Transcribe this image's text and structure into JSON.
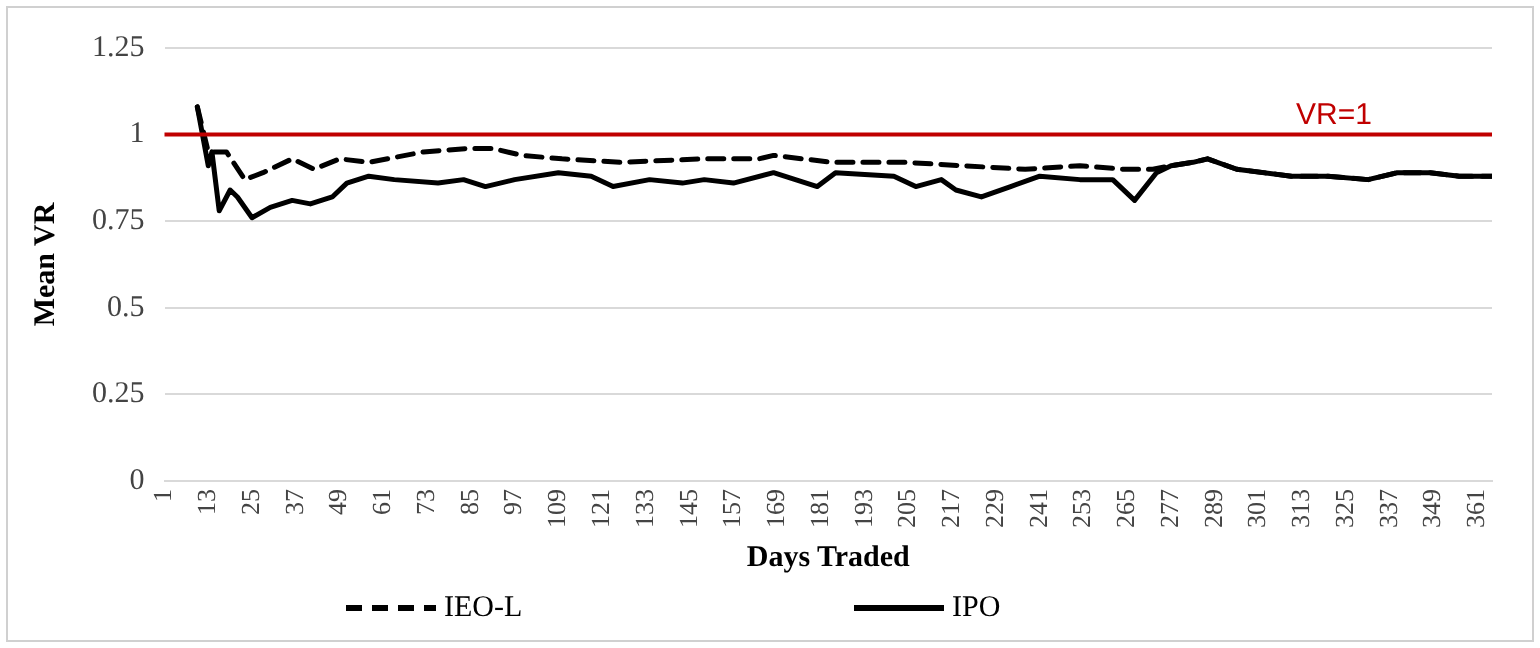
{
  "chart_data": {
    "type": "line",
    "xlabel": "Days Traded",
    "ylabel": "Mean VR",
    "xlim": [
      1,
      365
    ],
    "xticks": [
      1,
      13,
      25,
      37,
      49,
      61,
      73,
      85,
      97,
      109,
      121,
      133,
      145,
      157,
      169,
      181,
      193,
      205,
      217,
      229,
      241,
      253,
      265,
      277,
      289,
      301,
      313,
      325,
      337,
      349,
      361
    ],
    "ylim": [
      0,
      1.25
    ],
    "yticks": [
      0,
      0.25,
      0.5,
      0.75,
      1,
      1.25
    ],
    "grid": "y",
    "legend": "bottom",
    "marker": "none",
    "ref_lines": [
      {
        "axis": "y",
        "value": 1,
        "label": "VR=1",
        "color": "#c00000"
      }
    ],
    "series": [
      {
        "name": "IEO-L",
        "color": "#000000",
        "line_style": "dashed",
        "x": [
          10,
          13,
          18,
          23,
          28,
          36,
          42,
          49,
          57,
          72,
          84,
          91,
          99,
          110,
          126,
          149,
          164,
          168,
          184,
          204,
          220,
          237,
          252,
          264,
          272,
          277,
          283,
          287,
          295,
          310,
          320,
          331,
          339,
          348,
          356,
          365
        ],
        "values": [
          1.08,
          0.95,
          0.95,
          0.87,
          0.89,
          0.93,
          0.9,
          0.93,
          0.92,
          0.95,
          0.96,
          0.96,
          0.94,
          0.93,
          0.92,
          0.93,
          0.93,
          0.94,
          0.92,
          0.92,
          0.91,
          0.9,
          0.91,
          0.9,
          0.9,
          0.91,
          0.92,
          0.93,
          0.9,
          0.88,
          0.88,
          0.87,
          0.89,
          0.89,
          0.88,
          0.88
        ]
      },
      {
        "name": "IPO",
        "color": "#000000",
        "line_style": "solid",
        "x": [
          10,
          13,
          14,
          16,
          19,
          21,
          25,
          30,
          36,
          41,
          47,
          51,
          57,
          64,
          76,
          83,
          89,
          97,
          109,
          118,
          124,
          134,
          143,
          149,
          157,
          168,
          180,
          185,
          201,
          207,
          214,
          218,
          225,
          233,
          241,
          252,
          261,
          267,
          273,
          277,
          283,
          287,
          295,
          310,
          320,
          331,
          339,
          348,
          356,
          365
        ],
        "values": [
          1.08,
          0.91,
          0.95,
          0.78,
          0.84,
          0.82,
          0.76,
          0.79,
          0.81,
          0.8,
          0.82,
          0.86,
          0.88,
          0.87,
          0.86,
          0.87,
          0.85,
          0.87,
          0.89,
          0.88,
          0.85,
          0.87,
          0.86,
          0.87,
          0.86,
          0.89,
          0.85,
          0.89,
          0.88,
          0.85,
          0.87,
          0.84,
          0.82,
          0.85,
          0.88,
          0.87,
          0.87,
          0.81,
          0.89,
          0.91,
          0.92,
          0.93,
          0.9,
          0.88,
          0.88,
          0.87,
          0.89,
          0.89,
          0.88,
          0.88
        ]
      }
    ]
  }
}
